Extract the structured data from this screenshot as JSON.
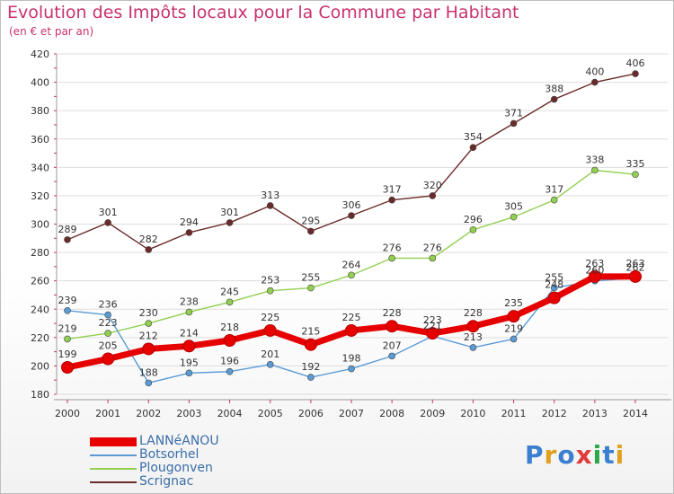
{
  "header": {
    "title": "Evolution des Impôts locaux pour la Commune par Habitant",
    "subtitle": "(en € et par an)"
  },
  "brand": {
    "logo_text": "Proxiti"
  },
  "colors": {
    "LANNéANOU": "#e60000",
    "Botsorhel": "#5b9bd5",
    "Plougonven": "#92d050",
    "Scrignac": "#6b2a2a",
    "grid": "#dddddd",
    "title": "#c8326e"
  },
  "chart_data": {
    "type": "line",
    "title": "Evolution des Impôts locaux pour la Commune par Habitant",
    "subtitle": "(en € et par an)",
    "xlabel": "",
    "ylabel": "",
    "x": [
      "2000",
      "2001",
      "2002",
      "2003",
      "2004",
      "2005",
      "2006",
      "2007",
      "2008",
      "2009",
      "2010",
      "2011",
      "2012",
      "2013",
      "2014"
    ],
    "ylim": [
      180,
      420
    ],
    "yticks": [
      180,
      200,
      220,
      240,
      260,
      280,
      300,
      320,
      340,
      360,
      380,
      400,
      420
    ],
    "grid": true,
    "legend_position": "bottom-left",
    "series": [
      {
        "name": "LANNéANOU",
        "values": [
          199,
          205,
          212,
          214,
          218,
          225,
          215,
          225,
          228,
          223,
          228,
          235,
          248,
          263,
          263
        ]
      },
      {
        "name": "Botsorhel",
        "values": [
          239,
          236,
          188,
          195,
          196,
          201,
          192,
          198,
          207,
          221,
          213,
          219,
          255,
          260,
          262
        ]
      },
      {
        "name": "Plougonven",
        "values": [
          219,
          223,
          230,
          238,
          245,
          253,
          255,
          264,
          276,
          276,
          296,
          305,
          317,
          338,
          335
        ]
      },
      {
        "name": "Scrignac",
        "values": [
          289,
          301,
          282,
          294,
          301,
          313,
          295,
          306,
          317,
          320,
          354,
          371,
          388,
          400,
          406
        ]
      }
    ]
  }
}
